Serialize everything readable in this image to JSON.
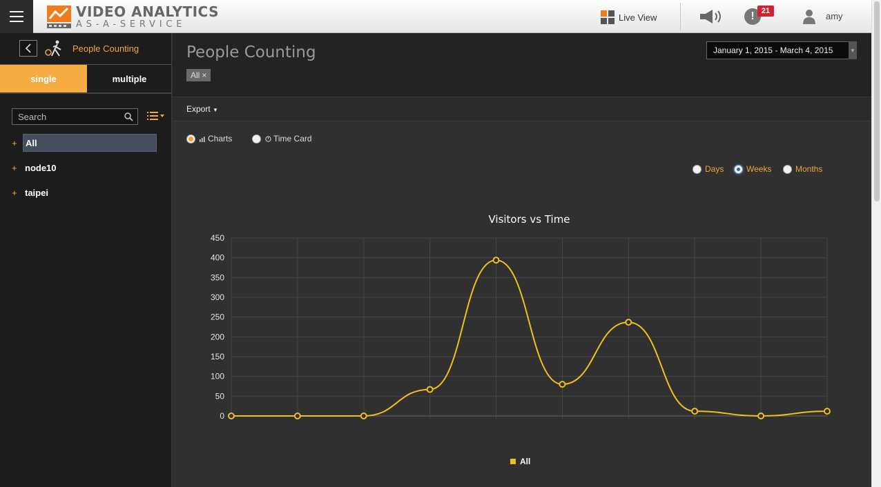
{
  "header": {
    "title": "VIDEO ANALYTICS",
    "subtitle": "AS-A-SERVICE",
    "live_view": "Live View",
    "alert_count": "21",
    "alert_glyph": "!",
    "username": "amy",
    "brand_color": "#f07b1d"
  },
  "sidebar": {
    "title": "People Counting",
    "tabs": {
      "single": "single",
      "multiple": "multiple"
    },
    "search_placeholder": "Search",
    "tree": [
      {
        "label": "All",
        "selected": true
      },
      {
        "label": "node10"
      },
      {
        "label": "taipei"
      }
    ],
    "accent": "#f6ab43"
  },
  "main": {
    "title": "People Counting",
    "filter_chip": "All",
    "date_range": "January 1, 2015 - March 4, 2015",
    "export_label": "Export",
    "view_options": {
      "charts": "Charts",
      "time_card": "Time Card",
      "selected": "Charts"
    },
    "period_options": {
      "days": "Days",
      "weeks": "Weeks",
      "months": "Months",
      "selected": "Weeks"
    }
  },
  "chart_data": {
    "type": "line",
    "title": "Visitors vs Time",
    "xlabel": "",
    "ylabel": "",
    "ylim": [
      0,
      450
    ],
    "yticks": [
      0,
      50,
      100,
      150,
      200,
      250,
      300,
      350,
      400,
      450
    ],
    "categories": [
      "",
      "",
      "",
      "",
      "",
      "",
      "",
      "",
      "",
      ""
    ],
    "series": [
      {
        "name": "All",
        "color": "#f2c01b",
        "values": [
          0,
          0,
          0,
          67,
          394,
          80,
          237,
          12,
          0,
          12
        ]
      }
    ],
    "grid": true,
    "legend": "bottom-center"
  }
}
